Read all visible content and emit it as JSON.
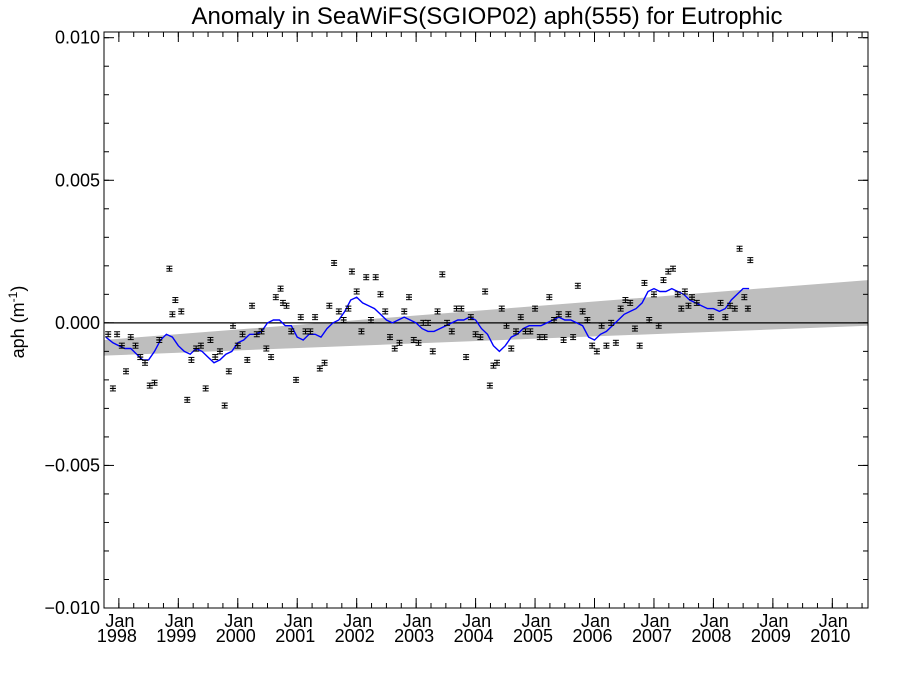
{
  "chart_data": {
    "type": "scatter",
    "title": "Anomaly in SeaWiFS(SGIOP02) aph(555) for Eutrophic",
    "ylabel": "aph (m",
    "ylabel_sup": "-1",
    "ylabel_close": ")",
    "xlim": [
      1997.75,
      2010.6
    ],
    "ylim": [
      -0.01,
      0.0102
    ],
    "y_ticks": [
      {
        "value": 0.01,
        "label": "0.010"
      },
      {
        "value": 0.005,
        "label": "0.005"
      },
      {
        "value": 0.0,
        "label": "0.000"
      },
      {
        "value": -0.005,
        "label": "−0.005"
      },
      {
        "value": -0.01,
        "label": "−0.010"
      }
    ],
    "x_ticks": [
      {
        "value": 1998.0,
        "label": "Jan",
        "year": "1998"
      },
      {
        "value": 1999.0,
        "label": "Jan",
        "year": "1999"
      },
      {
        "value": 2000.0,
        "label": "Jan",
        "year": "2000"
      },
      {
        "value": 2001.0,
        "label": "Jan",
        "year": "2001"
      },
      {
        "value": 2002.0,
        "label": "Jan",
        "year": "2002"
      },
      {
        "value": 2003.0,
        "label": "Jan",
        "year": "2003"
      },
      {
        "value": 2004.0,
        "label": "Jan",
        "year": "2004"
      },
      {
        "value": 2005.0,
        "label": "Jan",
        "year": "2005"
      },
      {
        "value": 2006.0,
        "label": "Jan",
        "year": "2006"
      },
      {
        "value": 2007.0,
        "label": "Jan",
        "year": "2007"
      },
      {
        "value": 2008.0,
        "label": "Jan",
        "year": "2008"
      },
      {
        "value": 2009.0,
        "label": "Jan",
        "year": "2009"
      },
      {
        "value": 2010.0,
        "label": "Jan",
        "year": "2010"
      }
    ],
    "zero_line": 0.0,
    "trend_band": {
      "color": "#bebebe",
      "lower": [
        {
          "x": 1997.75,
          "y": -0.00115
        },
        {
          "x": 2010.6,
          "y": -0.0001
        }
      ],
      "upper": [
        {
          "x": 1997.75,
          "y": -0.0006
        },
        {
          "x": 2010.6,
          "y": 0.0015
        }
      ]
    },
    "points_color": "#000000",
    "points": [
      {
        "x": 1997.82,
        "y": -0.0004
      },
      {
        "x": 1997.9,
        "y": -0.0023
      },
      {
        "x": 1997.97,
        "y": -0.0004
      },
      {
        "x": 1998.05,
        "y": -0.0008
      },
      {
        "x": 1998.12,
        "y": -0.0017
      },
      {
        "x": 1998.2,
        "y": -0.0005
      },
      {
        "x": 1998.28,
        "y": -0.0008
      },
      {
        "x": 1998.36,
        "y": -0.0012
      },
      {
        "x": 1998.44,
        "y": -0.0014
      },
      {
        "x": 1998.52,
        "y": -0.0022
      },
      {
        "x": 1998.6,
        "y": -0.0021
      },
      {
        "x": 1998.68,
        "y": -0.0006
      },
      {
        "x": 1998.85,
        "y": 0.0019
      },
      {
        "x": 1998.9,
        "y": 0.0003
      },
      {
        "x": 1998.95,
        "y": 0.0008
      },
      {
        "x": 1999.05,
        "y": 0.0004
      },
      {
        "x": 1999.15,
        "y": -0.0027
      },
      {
        "x": 1999.22,
        "y": -0.0013
      },
      {
        "x": 1999.3,
        "y": -0.0009
      },
      {
        "x": 1999.38,
        "y": -0.0008
      },
      {
        "x": 1999.46,
        "y": -0.0023
      },
      {
        "x": 1999.54,
        "y": -0.0006
      },
      {
        "x": 1999.62,
        "y": -0.0012
      },
      {
        "x": 1999.7,
        "y": -0.001
      },
      {
        "x": 1999.78,
        "y": -0.0029
      },
      {
        "x": 1999.85,
        "y": -0.0017
      },
      {
        "x": 1999.92,
        "y": -0.0001
      },
      {
        "x": 2000.0,
        "y": -0.0008
      },
      {
        "x": 2000.08,
        "y": -0.0004
      },
      {
        "x": 2000.16,
        "y": -0.0013
      },
      {
        "x": 2000.24,
        "y": 0.0006
      },
      {
        "x": 2000.32,
        "y": -0.0004
      },
      {
        "x": 2000.4,
        "y": -0.0003
      },
      {
        "x": 2000.48,
        "y": -0.0009
      },
      {
        "x": 2000.56,
        "y": -0.0012
      },
      {
        "x": 2000.64,
        "y": 0.0009
      },
      {
        "x": 2000.72,
        "y": 0.0012
      },
      {
        "x": 2000.76,
        "y": 0.0007
      },
      {
        "x": 2000.82,
        "y": 0.0006
      },
      {
        "x": 2000.9,
        "y": -0.0003
      },
      {
        "x": 2000.98,
        "y": -0.002
      },
      {
        "x": 2001.06,
        "y": 0.0002
      },
      {
        "x": 2001.14,
        "y": -0.0003
      },
      {
        "x": 2001.22,
        "y": -0.0003
      },
      {
        "x": 2001.3,
        "y": 0.0002
      },
      {
        "x": 2001.38,
        "y": -0.0016
      },
      {
        "x": 2001.46,
        "y": -0.0014
      },
      {
        "x": 2001.54,
        "y": 0.0006
      },
      {
        "x": 2001.62,
        "y": 0.0021
      },
      {
        "x": 2001.7,
        "y": 0.0004
      },
      {
        "x": 2001.78,
        "y": 0.0001
      },
      {
        "x": 2001.86,
        "y": 0.0005
      },
      {
        "x": 2001.92,
        "y": 0.0018
      },
      {
        "x": 2002.0,
        "y": 0.0011
      },
      {
        "x": 2002.08,
        "y": -0.0003
      },
      {
        "x": 2002.16,
        "y": 0.0016
      },
      {
        "x": 2002.24,
        "y": 0.0001
      },
      {
        "x": 2002.32,
        "y": 0.0016
      },
      {
        "x": 2002.4,
        "y": 0.001
      },
      {
        "x": 2002.48,
        "y": 0.0004
      },
      {
        "x": 2002.56,
        "y": -0.0005
      },
      {
        "x": 2002.64,
        "y": -0.0009
      },
      {
        "x": 2002.72,
        "y": -0.0007
      },
      {
        "x": 2002.8,
        "y": 0.0004
      },
      {
        "x": 2002.88,
        "y": 0.0009
      },
      {
        "x": 2002.96,
        "y": -0.0006
      },
      {
        "x": 2003.04,
        "y": -0.0007
      },
      {
        "x": 2003.12,
        "y": 0.0
      },
      {
        "x": 2003.2,
        "y": 0.0
      },
      {
        "x": 2003.28,
        "y": -0.001
      },
      {
        "x": 2003.36,
        "y": 0.0004
      },
      {
        "x": 2003.44,
        "y": 0.0017
      },
      {
        "x": 2003.52,
        "y": 0.0
      },
      {
        "x": 2003.6,
        "y": -0.0003
      },
      {
        "x": 2003.68,
        "y": 0.0005
      },
      {
        "x": 2003.76,
        "y": 0.0005
      },
      {
        "x": 2003.84,
        "y": -0.0012
      },
      {
        "x": 2003.92,
        "y": 0.0002
      },
      {
        "x": 2004.0,
        "y": -0.0004
      },
      {
        "x": 2004.08,
        "y": -0.0005
      },
      {
        "x": 2004.16,
        "y": 0.0011
      },
      {
        "x": 2004.24,
        "y": -0.0022
      },
      {
        "x": 2004.3,
        "y": -0.0015
      },
      {
        "x": 2004.36,
        "y": -0.0014
      },
      {
        "x": 2004.44,
        "y": 0.0005
      },
      {
        "x": 2004.52,
        "y": -0.0001
      },
      {
        "x": 2004.6,
        "y": -0.0009
      },
      {
        "x": 2004.68,
        "y": -0.0003
      },
      {
        "x": 2004.76,
        "y": 0.0002
      },
      {
        "x": 2004.84,
        "y": -0.0003
      },
      {
        "x": 2004.92,
        "y": -0.0003
      },
      {
        "x": 2005.0,
        "y": 0.0005
      },
      {
        "x": 2005.08,
        "y": -0.0005
      },
      {
        "x": 2005.16,
        "y": -0.0005
      },
      {
        "x": 2005.24,
        "y": 0.0009
      },
      {
        "x": 2005.32,
        "y": 0.0001
      },
      {
        "x": 2005.4,
        "y": 0.0003
      },
      {
        "x": 2005.48,
        "y": -0.0006
      },
      {
        "x": 2005.56,
        "y": 0.0003
      },
      {
        "x": 2005.64,
        "y": -0.0005
      },
      {
        "x": 2005.72,
        "y": 0.0013
      },
      {
        "x": 2005.8,
        "y": 0.0004
      },
      {
        "x": 2005.88,
        "y": 0.0001
      },
      {
        "x": 2005.96,
        "y": -0.0008
      },
      {
        "x": 2006.04,
        "y": -0.001
      },
      {
        "x": 2006.12,
        "y": -0.0001
      },
      {
        "x": 2006.2,
        "y": -0.0008
      },
      {
        "x": 2006.28,
        "y": 0.0
      },
      {
        "x": 2006.36,
        "y": -0.0007
      },
      {
        "x": 2006.44,
        "y": 0.0005
      },
      {
        "x": 2006.52,
        "y": 0.0008
      },
      {
        "x": 2006.6,
        "y": 0.0007
      },
      {
        "x": 2006.68,
        "y": -0.0002
      },
      {
        "x": 2006.76,
        "y": -0.0008
      },
      {
        "x": 2006.84,
        "y": 0.0014
      },
      {
        "x": 2006.92,
        "y": 0.0001
      },
      {
        "x": 2007.0,
        "y": 0.001
      },
      {
        "x": 2007.08,
        "y": -0.0001
      },
      {
        "x": 2007.16,
        "y": 0.0015
      },
      {
        "x": 2007.24,
        "y": 0.0018
      },
      {
        "x": 2007.32,
        "y": 0.0019
      },
      {
        "x": 2007.4,
        "y": 0.001
      },
      {
        "x": 2007.46,
        "y": 0.0005
      },
      {
        "x": 2007.52,
        "y": 0.0011
      },
      {
        "x": 2007.58,
        "y": 0.0006
      },
      {
        "x": 2007.64,
        "y": 0.0009
      },
      {
        "x": 2007.72,
        "y": 0.0007
      },
      {
        "x": 2007.96,
        "y": 0.0002
      },
      {
        "x": 2008.12,
        "y": 0.0007
      },
      {
        "x": 2008.2,
        "y": 0.0002
      },
      {
        "x": 2008.28,
        "y": 0.0006
      },
      {
        "x": 2008.36,
        "y": 0.0005
      },
      {
        "x": 2008.44,
        "y": 0.0026
      },
      {
        "x": 2008.52,
        "y": 0.0009
      },
      {
        "x": 2008.58,
        "y": 0.0005
      },
      {
        "x": 2008.62,
        "y": 0.0022
      }
    ],
    "running_mean_color": "#0000ff",
    "running_mean": [
      {
        "x": 1997.78,
        "y": -0.0005
      },
      {
        "x": 1997.9,
        "y": -0.0007
      },
      {
        "x": 1998.0,
        "y": -0.0008
      },
      {
        "x": 1998.1,
        "y": -0.0009
      },
      {
        "x": 1998.2,
        "y": -0.0009
      },
      {
        "x": 1998.3,
        "y": -0.0011
      },
      {
        "x": 1998.4,
        "y": -0.0013
      },
      {
        "x": 1998.5,
        "y": -0.0013
      },
      {
        "x": 1998.6,
        "y": -0.001
      },
      {
        "x": 1998.7,
        "y": -0.0006
      },
      {
        "x": 1998.8,
        "y": -0.0004
      },
      {
        "x": 1998.9,
        "y": -0.0005
      },
      {
        "x": 1999.0,
        "y": -0.0008
      },
      {
        "x": 1999.1,
        "y": -0.001
      },
      {
        "x": 1999.2,
        "y": -0.0011
      },
      {
        "x": 1999.3,
        "y": -0.0009
      },
      {
        "x": 1999.4,
        "y": -0.001
      },
      {
        "x": 1999.5,
        "y": -0.0012
      },
      {
        "x": 1999.6,
        "y": -0.0014
      },
      {
        "x": 1999.7,
        "y": -0.0013
      },
      {
        "x": 1999.8,
        "y": -0.0011
      },
      {
        "x": 1999.9,
        "y": -0.001
      },
      {
        "x": 2000.0,
        "y": -0.0007
      },
      {
        "x": 2000.1,
        "y": -0.0006
      },
      {
        "x": 2000.2,
        "y": -0.0004
      },
      {
        "x": 2000.3,
        "y": -0.0004
      },
      {
        "x": 2000.4,
        "y": -0.0003
      },
      {
        "x": 2000.5,
        "y": 0.0
      },
      {
        "x": 2000.6,
        "y": 0.0001
      },
      {
        "x": 2000.7,
        "y": 0.0001
      },
      {
        "x": 2000.8,
        "y": -0.0001
      },
      {
        "x": 2000.9,
        "y": -0.0001
      },
      {
        "x": 2001.0,
        "y": -0.0005
      },
      {
        "x": 2001.1,
        "y": -0.0006
      },
      {
        "x": 2001.2,
        "y": -0.0004
      },
      {
        "x": 2001.3,
        "y": -0.0004
      },
      {
        "x": 2001.4,
        "y": -0.0005
      },
      {
        "x": 2001.5,
        "y": -0.0002
      },
      {
        "x": 2001.6,
        "y": 0.0
      },
      {
        "x": 2001.7,
        "y": 0.0001
      },
      {
        "x": 2001.8,
        "y": 0.0004
      },
      {
        "x": 2001.9,
        "y": 0.0008
      },
      {
        "x": 2002.0,
        "y": 0.0009
      },
      {
        "x": 2002.1,
        "y": 0.0007
      },
      {
        "x": 2002.2,
        "y": 0.0006
      },
      {
        "x": 2002.3,
        "y": 0.0005
      },
      {
        "x": 2002.4,
        "y": 0.0003
      },
      {
        "x": 2002.5,
        "y": 0.0001
      },
      {
        "x": 2002.6,
        "y": 0.0
      },
      {
        "x": 2002.7,
        "y": 0.0001
      },
      {
        "x": 2002.8,
        "y": 0.0002
      },
      {
        "x": 2002.9,
        "y": 0.0001
      },
      {
        "x": 2003.0,
        "y": 0.0
      },
      {
        "x": 2003.1,
        "y": -0.0002
      },
      {
        "x": 2003.2,
        "y": -0.0003
      },
      {
        "x": 2003.3,
        "y": -0.0003
      },
      {
        "x": 2003.4,
        "y": -0.0002
      },
      {
        "x": 2003.5,
        "y": -0.0001
      },
      {
        "x": 2003.6,
        "y": 0.0
      },
      {
        "x": 2003.7,
        "y": 0.0001
      },
      {
        "x": 2003.8,
        "y": 0.0001
      },
      {
        "x": 2003.9,
        "y": 0.0002
      },
      {
        "x": 2004.0,
        "y": 0.0001
      },
      {
        "x": 2004.1,
        "y": -0.0002
      },
      {
        "x": 2004.2,
        "y": -0.0004
      },
      {
        "x": 2004.3,
        "y": -0.0008
      },
      {
        "x": 2004.4,
        "y": -0.001
      },
      {
        "x": 2004.5,
        "y": -0.0008
      },
      {
        "x": 2004.6,
        "y": -0.0005
      },
      {
        "x": 2004.7,
        "y": -0.0004
      },
      {
        "x": 2004.8,
        "y": -0.0002
      },
      {
        "x": 2004.9,
        "y": -0.0001
      },
      {
        "x": 2005.0,
        "y": -0.0001
      },
      {
        "x": 2005.1,
        "y": -0.0001
      },
      {
        "x": 2005.2,
        "y": 0.0
      },
      {
        "x": 2005.3,
        "y": 0.0001
      },
      {
        "x": 2005.4,
        "y": 0.0002
      },
      {
        "x": 2005.5,
        "y": 0.0001
      },
      {
        "x": 2005.6,
        "y": 0.0001
      },
      {
        "x": 2005.7,
        "y": 0.0
      },
      {
        "x": 2005.8,
        "y": -0.0001
      },
      {
        "x": 2005.9,
        "y": -0.0005
      },
      {
        "x": 2006.0,
        "y": -0.0006
      },
      {
        "x": 2006.1,
        "y": -0.0004
      },
      {
        "x": 2006.2,
        "y": -0.0003
      },
      {
        "x": 2006.3,
        "y": -0.0001
      },
      {
        "x": 2006.4,
        "y": 0.0001
      },
      {
        "x": 2006.5,
        "y": 0.0003
      },
      {
        "x": 2006.6,
        "y": 0.0004
      },
      {
        "x": 2006.7,
        "y": 0.0005
      },
      {
        "x": 2006.8,
        "y": 0.0007
      },
      {
        "x": 2006.9,
        "y": 0.0011
      },
      {
        "x": 2007.0,
        "y": 0.0012
      },
      {
        "x": 2007.1,
        "y": 0.0011
      },
      {
        "x": 2007.2,
        "y": 0.0011
      },
      {
        "x": 2007.3,
        "y": 0.0012
      },
      {
        "x": 2007.4,
        "y": 0.0011
      },
      {
        "x": 2007.5,
        "y": 0.001
      },
      {
        "x": 2007.6,
        "y": 0.0008
      },
      {
        "x": 2007.7,
        "y": 0.0007
      },
      {
        "x": 2007.8,
        "y": 0.0006
      },
      {
        "x": 2007.9,
        "y": 0.0005
      },
      {
        "x": 2008.0,
        "y": 0.0005
      },
      {
        "x": 2008.1,
        "y": 0.0004
      },
      {
        "x": 2008.2,
        "y": 0.0005
      },
      {
        "x": 2008.3,
        "y": 0.0008
      },
      {
        "x": 2008.4,
        "y": 0.001
      },
      {
        "x": 2008.5,
        "y": 0.0012
      },
      {
        "x": 2008.6,
        "y": 0.0012
      }
    ],
    "grid": false
  }
}
